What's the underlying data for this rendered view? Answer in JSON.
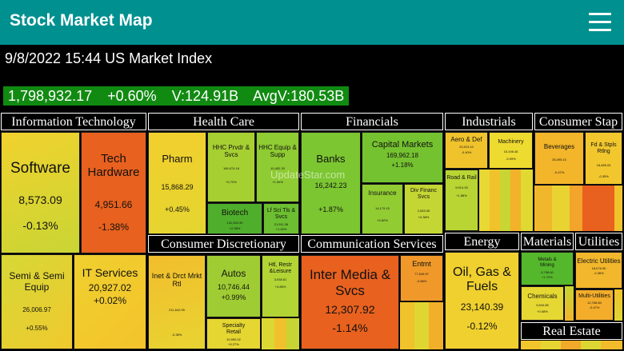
{
  "app": {
    "title": "Stock Market Map"
  },
  "header": {
    "dateline": "9/8/2022 15:44 US Market Index"
  },
  "index": {
    "value": "1,798,932.17",
    "change": "+0.60%",
    "volume": "V:124.91B",
    "avg_volume": "AvgV:180.53B"
  },
  "watermark": "UpdateStar.com",
  "sectors": {
    "information_technology": "Information Technology",
    "health_care": "Health Care",
    "financials": "Financials",
    "industrials": "Industrials",
    "consumer_staples": "Consumer Stap",
    "consumer_discretionary": "Consumer Discretionary",
    "communication_services": "Communication Services",
    "energy": "Energy",
    "materials": "Materials",
    "utilities": "Utilities",
    "real_estate": "Real Estate"
  },
  "tiles": {
    "software": {
      "name": "Software",
      "value": "8,573.09",
      "change": "-0.13%"
    },
    "tech_hardware": {
      "name": "Tech Hardware",
      "value": "4,951.66",
      "change": "-1.38%"
    },
    "semis": {
      "name": "Semi & Semi Equip",
      "value": "26,006.97",
      "change": "+0.55%"
    },
    "it_services": {
      "name": "IT Services",
      "value": "20,927.02",
      "change": "+0.02%"
    },
    "pharm": {
      "name": "Pharm",
      "value": "15,868.29",
      "change": "+0.45%"
    },
    "hhc_prvdr": {
      "name": "HHC Prvdr & Svcs",
      "value": "169,974.18",
      "change": "+0.70%"
    },
    "hhc_equip": {
      "name": "HHC Equip & Supp",
      "value": "10,452.33",
      "change": "+1.00%"
    },
    "biotech": {
      "name": "Biotech",
      "value": "131,300.30",
      "change": "+2.38%"
    },
    "lf_sci": {
      "name": "Lf Sci Tls & Svcs",
      "value": "21,911.38",
      "change": "+1.00%"
    },
    "banks": {
      "name": "Banks",
      "value": "16,242.23",
      "change": "+1.87%"
    },
    "capital_markets": {
      "name": "Capital Markets",
      "value": "169,962.18",
      "change": "+1.18%"
    },
    "insurance": {
      "name": "Insurance",
      "value": "14,179.15",
      "change": "+0.82%"
    },
    "div_financ": {
      "name": "Div Financ Svcs",
      "value": "2,063.05",
      "change": "+0.38%"
    },
    "aero_def": {
      "name": "Aero & Def",
      "value": "20,913.10",
      "change": "-0.40%"
    },
    "machinery": {
      "name": "Machinery",
      "value": "15,198.45",
      "change": "-0.09%"
    },
    "road_rail": {
      "name": "Road & Rail",
      "value": "9,914.93",
      "change": "+1.88%"
    },
    "beverages": {
      "name": "Beverages",
      "value": "28,495.10",
      "change": "-0.47%"
    },
    "fd_stpls": {
      "name": "Fd & Stpls Rtlng",
      "value": "18,485.03",
      "change": "-0.35%"
    },
    "inet_drct": {
      "name": "Inet & Drct Mrkt Rtl",
      "value": "211,642.95",
      "change": "-0.38%"
    },
    "autos": {
      "name": "Autos",
      "value": "10,746.44",
      "change": "+0.99%"
    },
    "htl_restr": {
      "name": "Htl, Restr &Leisure",
      "value": "3,938.61",
      "change": "+0.85%"
    },
    "specialty_retail": {
      "name": "Specialty Retail",
      "value": "10,950.02",
      "change": "+0.27%"
    },
    "inter_media": {
      "name": "Inter Media & Svcs",
      "value": "12,307.92",
      "change": "-1.14%"
    },
    "entmt": {
      "name": "Entmt",
      "value": "77,549.97",
      "change": "-0.88%"
    },
    "oil_gas": {
      "name": "Oil, Gas & Fuels",
      "value": "23,140.39",
      "change": "-0.12%"
    },
    "metals_mining": {
      "name": "Metals & Mining",
      "value": "5,798.60",
      "change": "+1.72%"
    },
    "chemicals": {
      "name": "Chemicals",
      "value": "9,634.85",
      "change": "+0.08%"
    },
    "electric_utilities": {
      "name": "Electric Utilities",
      "value": "18,076.90",
      "change": "-0.36%"
    },
    "multi_utilities": {
      "name": "Multi-Utilities",
      "value": "12,768.84",
      "change": "-0.47%"
    }
  },
  "colors": {
    "header_bg": "#009090",
    "index_bg": "#118a11",
    "strong_red": "#e8611e",
    "mild_red": "#f0a52a",
    "neutral": "#f0d02e",
    "mild_green": "#c5d733",
    "green": "#8fcb32",
    "strong_green": "#55b82c"
  }
}
